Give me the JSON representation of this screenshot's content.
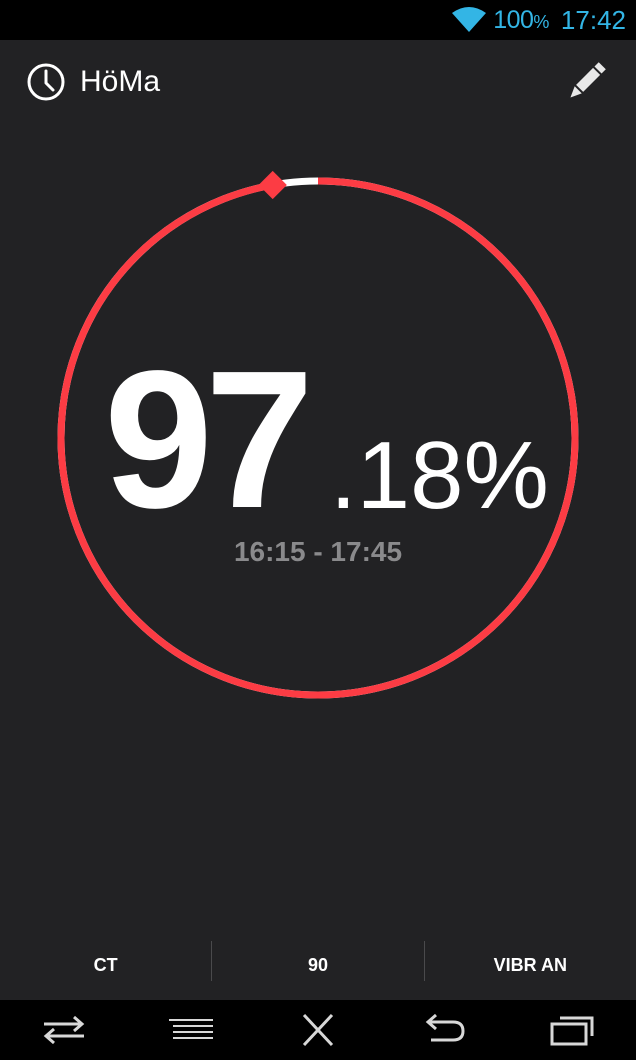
{
  "status_bar": {
    "battery": "100",
    "battery_unit": "%",
    "time": "17:42",
    "accent_color": "#33b5e5"
  },
  "app_bar": {
    "title": "HöMa",
    "left_icon": "clock-icon",
    "right_icon": "pencil-icon"
  },
  "progress": {
    "value_int": "97",
    "value_frac": ".18%",
    "fraction": 0.9718,
    "time_range": "16:15 - 17:45",
    "ring_color": "#fc3c44",
    "track_color": "#ffffff"
  },
  "actions": [
    {
      "label": "CT"
    },
    {
      "label": "90"
    },
    {
      "label": "VIBR AN"
    }
  ],
  "nav_bar": {
    "icons": [
      "swap-icon",
      "menu-lines-icon",
      "close-x-icon",
      "back-icon",
      "recent-apps-icon"
    ]
  }
}
